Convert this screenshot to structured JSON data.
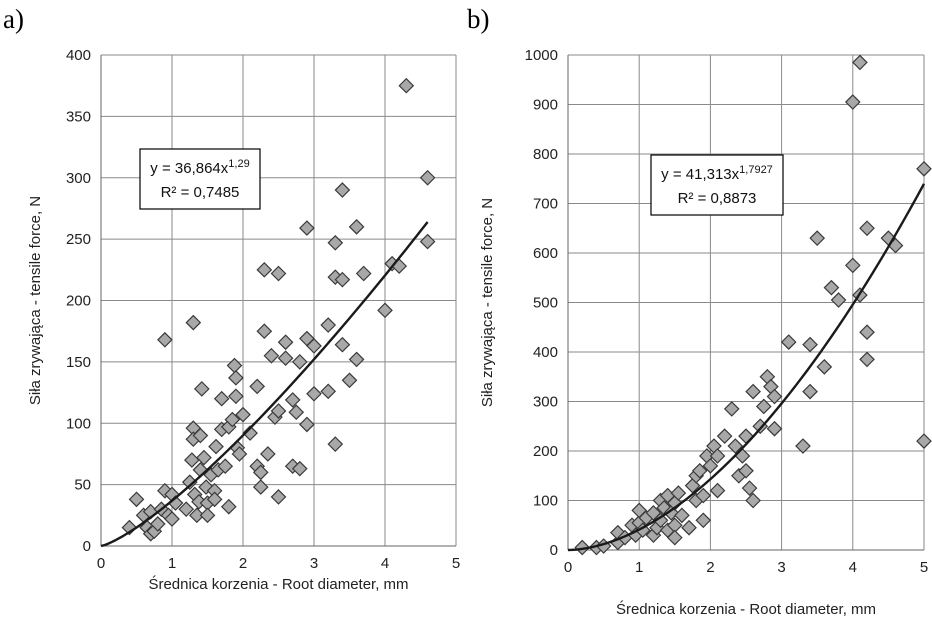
{
  "chart_data": [
    {
      "id": "a",
      "panel_label": "a)",
      "type": "scatter",
      "xlabel": "Średnica korzenia - Root diameter, mm",
      "ylabel": "Siła zrywająca - tensile force, N",
      "xlim": [
        0,
        5
      ],
      "ylim": [
        0,
        400
      ],
      "xticks": [
        "0",
        "1",
        "2",
        "3",
        "4",
        "5"
      ],
      "yticks": [
        "0",
        "50",
        "100",
        "150",
        "200",
        "250",
        "300",
        "350",
        "400"
      ],
      "grid": true,
      "marker": "diamond",
      "equation": {
        "line1_prefix": "y = 36,864x",
        "line1_exponent": "1,29",
        "line2": "R² = 0,7485"
      },
      "trendline": {
        "type": "power",
        "a": 36.864,
        "b": 1.29,
        "x_range": [
          0,
          4.6
        ]
      },
      "points": [
        [
          0.4,
          15
        ],
        [
          0.5,
          38
        ],
        [
          0.6,
          25
        ],
        [
          0.65,
          15
        ],
        [
          0.7,
          10
        ],
        [
          0.7,
          28
        ],
        [
          0.75,
          12
        ],
        [
          0.8,
          18
        ],
        [
          0.85,
          30
        ],
        [
          0.9,
          45
        ],
        [
          0.9,
          168
        ],
        [
          0.95,
          25
        ],
        [
          1.0,
          42
        ],
        [
          1.0,
          22
        ],
        [
          1.05,
          35
        ],
        [
          1.2,
          30
        ],
        [
          1.25,
          52
        ],
        [
          1.28,
          70
        ],
        [
          1.3,
          96
        ],
        [
          1.3,
          87
        ],
        [
          1.32,
          42
        ],
        [
          1.35,
          25
        ],
        [
          1.3,
          182
        ],
        [
          1.38,
          36
        ],
        [
          1.4,
          62
        ],
        [
          1.4,
          90
        ],
        [
          1.42,
          128
        ],
        [
          1.45,
          72
        ],
        [
          1.48,
          48
        ],
        [
          1.5,
          35
        ],
        [
          1.5,
          25
        ],
        [
          1.55,
          58
        ],
        [
          1.6,
          45
        ],
        [
          1.6,
          38
        ],
        [
          1.62,
          81
        ],
        [
          1.65,
          62
        ],
        [
          1.7,
          95
        ],
        [
          1.7,
          120
        ],
        [
          1.75,
          65
        ],
        [
          1.8,
          32
        ],
        [
          1.8,
          97
        ],
        [
          1.85,
          103
        ],
        [
          1.88,
          147
        ],
        [
          1.9,
          137
        ],
        [
          1.9,
          122
        ],
        [
          1.92,
          80
        ],
        [
          1.95,
          75
        ],
        [
          2.0,
          107
        ],
        [
          2.1,
          92
        ],
        [
          2.2,
          65
        ],
        [
          2.2,
          130
        ],
        [
          2.25,
          48
        ],
        [
          2.25,
          60
        ],
        [
          2.3,
          225
        ],
        [
          2.3,
          175
        ],
        [
          2.35,
          75
        ],
        [
          2.4,
          155
        ],
        [
          2.45,
          105
        ],
        [
          2.5,
          222
        ],
        [
          2.5,
          110
        ],
        [
          2.5,
          40
        ],
        [
          2.6,
          166
        ],
        [
          2.6,
          153
        ],
        [
          2.7,
          119
        ],
        [
          2.7,
          65
        ],
        [
          2.75,
          109
        ],
        [
          2.8,
          150
        ],
        [
          2.8,
          63
        ],
        [
          2.9,
          259
        ],
        [
          2.9,
          169
        ],
        [
          2.9,
          99
        ],
        [
          3.0,
          163
        ],
        [
          3.0,
          124
        ],
        [
          3.2,
          180
        ],
        [
          3.2,
          126
        ],
        [
          3.3,
          247
        ],
        [
          3.3,
          219
        ],
        [
          3.3,
          83
        ],
        [
          3.4,
          290
        ],
        [
          3.4,
          217
        ],
        [
          3.4,
          164
        ],
        [
          3.5,
          135
        ],
        [
          3.6,
          260
        ],
        [
          3.6,
          152
        ],
        [
          3.7,
          222
        ],
        [
          4.0,
          192
        ],
        [
          4.1,
          230
        ],
        [
          4.2,
          228
        ],
        [
          4.3,
          375
        ],
        [
          4.6,
          300
        ],
        [
          4.6,
          248
        ]
      ]
    },
    {
      "id": "b",
      "panel_label": "b)",
      "type": "scatter",
      "xlabel": "Średnica korzenia - Root diameter, mm",
      "ylabel": "Siła zrywająca - tensile force, N",
      "xlim": [
        0,
        5
      ],
      "ylim": [
        0,
        1000
      ],
      "xticks": [
        "0",
        "1",
        "2",
        "3",
        "4",
        "5"
      ],
      "yticks": [
        "0",
        "100",
        "200",
        "300",
        "400",
        "500",
        "600",
        "700",
        "800",
        "900",
        "1000"
      ],
      "grid": true,
      "marker": "diamond",
      "equation": {
        "line1_prefix": "y = 41,313x",
        "line1_exponent": "1,7927",
        "line2": "R² = 0,8873"
      },
      "trendline": {
        "type": "power",
        "a": 41.313,
        "b": 1.7927,
        "x_range": [
          0,
          5
        ]
      },
      "points": [
        [
          0.2,
          5
        ],
        [
          0.4,
          5
        ],
        [
          0.5,
          8
        ],
        [
          0.7,
          15
        ],
        [
          0.7,
          35
        ],
        [
          0.8,
          25
        ],
        [
          0.9,
          50
        ],
        [
          0.95,
          30
        ],
        [
          1.0,
          55
        ],
        [
          1.0,
          80
        ],
        [
          1.05,
          40
        ],
        [
          1.1,
          65
        ],
        [
          1.2,
          75
        ],
        [
          1.2,
          30
        ],
        [
          1.25,
          45
        ],
        [
          1.3,
          100
        ],
        [
          1.3,
          60
        ],
        [
          1.35,
          85
        ],
        [
          1.4,
          110
        ],
        [
          1.4,
          40
        ],
        [
          1.45,
          75
        ],
        [
          1.5,
          95
        ],
        [
          1.5,
          50
        ],
        [
          1.5,
          25
        ],
        [
          1.55,
          115
        ],
        [
          1.6,
          70
        ],
        [
          1.7,
          45
        ],
        [
          1.75,
          130
        ],
        [
          1.8,
          100
        ],
        [
          1.8,
          150
        ],
        [
          1.85,
          160
        ],
        [
          1.9,
          110
        ],
        [
          1.9,
          60
        ],
        [
          1.95,
          190
        ],
        [
          2.0,
          170
        ],
        [
          2.05,
          210
        ],
        [
          2.1,
          190
        ],
        [
          2.1,
          120
        ],
        [
          2.2,
          230
        ],
        [
          2.3,
          285
        ],
        [
          2.35,
          210
        ],
        [
          2.4,
          150
        ],
        [
          2.45,
          190
        ],
        [
          2.5,
          230
        ],
        [
          2.5,
          160
        ],
        [
          2.55,
          125
        ],
        [
          2.6,
          320
        ],
        [
          2.6,
          100
        ],
        [
          2.7,
          250
        ],
        [
          2.75,
          290
        ],
        [
          2.8,
          350
        ],
        [
          2.85,
          330
        ],
        [
          2.9,
          245
        ],
        [
          2.9,
          310
        ],
        [
          3.1,
          420
        ],
        [
          3.3,
          210
        ],
        [
          3.4,
          415
        ],
        [
          3.4,
          320
        ],
        [
          3.5,
          630
        ],
        [
          3.6,
          370
        ],
        [
          3.7,
          530
        ],
        [
          3.8,
          505
        ],
        [
          4.0,
          905
        ],
        [
          4.0,
          575
        ],
        [
          4.1,
          985
        ],
        [
          4.1,
          515
        ],
        [
          4.2,
          650
        ],
        [
          4.2,
          440
        ],
        [
          4.2,
          385
        ],
        [
          4.5,
          630
        ],
        [
          4.6,
          615
        ],
        [
          5.0,
          770
        ],
        [
          5.0,
          220
        ]
      ]
    }
  ]
}
